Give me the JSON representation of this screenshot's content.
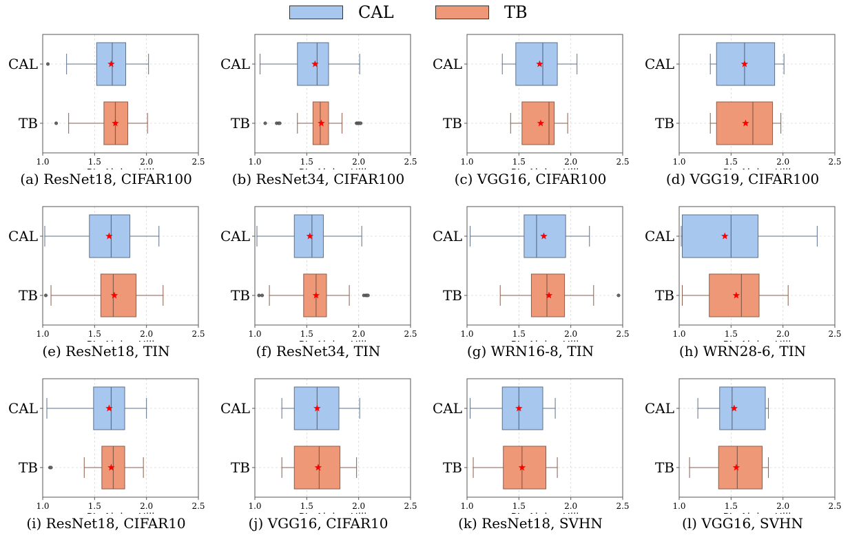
{
  "legend": {
    "entries": [
      {
        "name": "CAL",
        "color": "#a7c7ee"
      },
      {
        "name": "TB",
        "color": "#ee9877"
      }
    ]
  },
  "star_color": "#ff0000",
  "chart_data": [
    {
      "type": "box",
      "caption": "(a) ResNet18, CIFAR100",
      "xlabel": "PL_Alpha_Hill",
      "xlim": [
        1.0,
        2.5
      ],
      "xticks": [
        "1.0",
        "1.5",
        "2.0",
        "2.5"
      ],
      "categories": [
        "CAL",
        "TB"
      ],
      "grid": true,
      "boxes": [
        {
          "name": "CAL",
          "whisker_low": 1.23,
          "q1": 1.52,
          "median": 1.67,
          "q3": 1.8,
          "whisker_high": 2.02,
          "mean": 1.66,
          "outliers": [
            1.05
          ]
        },
        {
          "name": "TB",
          "whisker_low": 1.25,
          "q1": 1.59,
          "median": 1.7,
          "q3": 1.82,
          "whisker_high": 2.01,
          "mean": 1.7,
          "outliers": [
            1.13
          ]
        }
      ]
    },
    {
      "type": "box",
      "caption": "(b) ResNet34, CIFAR100",
      "xlabel": "PL_Alpha_Hill",
      "xlim": [
        1.0,
        2.5
      ],
      "xticks": [
        "1.0",
        "1.5",
        "2.0",
        "2.5"
      ],
      "categories": [
        "CAL",
        "TB"
      ],
      "grid": true,
      "boxes": [
        {
          "name": "CAL",
          "whisker_low": 1.05,
          "q1": 1.41,
          "median": 1.6,
          "q3": 1.71,
          "whisker_high": 2.01,
          "mean": 1.58,
          "outliers": []
        },
        {
          "name": "TB",
          "whisker_low": 1.41,
          "q1": 1.56,
          "median": 1.63,
          "q3": 1.71,
          "whisker_high": 1.84,
          "mean": 1.64,
          "outliers": [
            1.1,
            1.21,
            1.23,
            1.24,
            1.98,
            1.99,
            2.0,
            2.01,
            2.02
          ]
        }
      ]
    },
    {
      "type": "box",
      "caption": "(c) VGG16, CIFAR100",
      "xlabel": "PL_Alpha_Hill",
      "xlim": [
        1.0,
        2.5
      ],
      "xticks": [
        "1.0",
        "1.5",
        "2.0",
        "2.5"
      ],
      "categories": [
        "CAL",
        "TB"
      ],
      "grid": true,
      "boxes": [
        {
          "name": "CAL",
          "whisker_low": 1.34,
          "q1": 1.47,
          "median": 1.73,
          "q3": 1.87,
          "whisker_high": 2.06,
          "mean": 1.7,
          "outliers": []
        },
        {
          "name": "TB",
          "whisker_low": 1.42,
          "q1": 1.53,
          "median": 1.79,
          "q3": 1.84,
          "whisker_high": 1.97,
          "mean": 1.71,
          "outliers": []
        }
      ]
    },
    {
      "type": "box",
      "caption": "(d) VGG19, CIFAR100",
      "xlabel": "PL_Alpha_Hill",
      "xlim": [
        1.0,
        2.5
      ],
      "xticks": [
        "1.0",
        "1.5",
        "2.0",
        "2.5"
      ],
      "categories": [
        "CAL",
        "TB"
      ],
      "grid": true,
      "boxes": [
        {
          "name": "CAL",
          "whisker_low": 1.3,
          "q1": 1.36,
          "median": 1.63,
          "q3": 1.92,
          "whisker_high": 2.01,
          "mean": 1.63,
          "outliers": []
        },
        {
          "name": "TB",
          "whisker_low": 1.3,
          "q1": 1.36,
          "median": 1.71,
          "q3": 1.9,
          "whisker_high": 1.98,
          "mean": 1.64,
          "outliers": []
        }
      ]
    },
    {
      "type": "box",
      "caption": "(e) ResNet18, TIN",
      "xlabel": "PL_Alpha_Hill",
      "xlim": [
        1.0,
        2.5
      ],
      "xticks": [
        "1.0",
        "1.5",
        "2.0",
        "2.5"
      ],
      "categories": [
        "CAL",
        "TB"
      ],
      "grid": true,
      "boxes": [
        {
          "name": "CAL",
          "whisker_low": 1.02,
          "q1": 1.45,
          "median": 1.66,
          "q3": 1.84,
          "whisker_high": 2.12,
          "mean": 1.64,
          "outliers": []
        },
        {
          "name": "TB",
          "whisker_low": 1.08,
          "q1": 1.56,
          "median": 1.68,
          "q3": 1.9,
          "whisker_high": 2.16,
          "mean": 1.69,
          "outliers": [
            1.03
          ]
        }
      ]
    },
    {
      "type": "box",
      "caption": "(f) ResNet34, TIN",
      "xlabel": "PL_Alpha_Hill",
      "xlim": [
        1.0,
        2.5
      ],
      "xticks": [
        "1.0",
        "1.5",
        "2.0",
        "2.5"
      ],
      "categories": [
        "CAL",
        "TB"
      ],
      "grid": true,
      "boxes": [
        {
          "name": "CAL",
          "whisker_low": 1.02,
          "q1": 1.38,
          "median": 1.55,
          "q3": 1.66,
          "whisker_high": 2.03,
          "mean": 1.53,
          "outliers": []
        },
        {
          "name": "TB",
          "whisker_low": 1.14,
          "q1": 1.47,
          "median": 1.59,
          "q3": 1.69,
          "whisker_high": 1.91,
          "mean": 1.59,
          "outliers": [
            1.04,
            1.07,
            2.05,
            2.07,
            2.08,
            2.09
          ]
        }
      ]
    },
    {
      "type": "box",
      "caption": "(g) WRN16-8, TIN",
      "xlabel": "PL_Alpha_Hill",
      "xlim": [
        1.0,
        2.5
      ],
      "xticks": [
        "1.0",
        "1.5",
        "2.0",
        "2.5"
      ],
      "categories": [
        "CAL",
        "TB"
      ],
      "grid": true,
      "boxes": [
        {
          "name": "CAL",
          "whisker_low": 1.03,
          "q1": 1.55,
          "median": 1.67,
          "q3": 1.95,
          "whisker_high": 2.18,
          "mean": 1.74,
          "outliers": []
        },
        {
          "name": "TB",
          "whisker_low": 1.32,
          "q1": 1.62,
          "median": 1.77,
          "q3": 1.94,
          "whisker_high": 2.22,
          "mean": 1.79,
          "outliers": [
            2.46
          ]
        }
      ]
    },
    {
      "type": "box",
      "caption": "(h) WRN28-6, TIN",
      "xlabel": "PL_Alpha_Hill",
      "xlim": [
        1.0,
        2.5
      ],
      "xticks": [
        "1.0",
        "1.5",
        "2.0",
        "2.5"
      ],
      "categories": [
        "CAL",
        "TB"
      ],
      "grid": true,
      "boxes": [
        {
          "name": "CAL",
          "whisker_low": 1.02,
          "q1": 1.03,
          "median": 1.5,
          "q3": 1.76,
          "whisker_high": 2.33,
          "mean": 1.44,
          "outliers": []
        },
        {
          "name": "TB",
          "whisker_low": 1.03,
          "q1": 1.29,
          "median": 1.6,
          "q3": 1.77,
          "whisker_high": 2.05,
          "mean": 1.55,
          "outliers": []
        }
      ]
    },
    {
      "type": "box",
      "caption": "(i) ResNet18, CIFAR10",
      "xlabel": "PL_Alpha_Hill",
      "xlim": [
        1.0,
        2.5
      ],
      "xticks": [
        "1.0",
        "1.5",
        "2.0",
        "2.5"
      ],
      "categories": [
        "CAL",
        "TB"
      ],
      "grid": true,
      "boxes": [
        {
          "name": "CAL",
          "whisker_low": 1.04,
          "q1": 1.49,
          "median": 1.66,
          "q3": 1.79,
          "whisker_high": 2.0,
          "mean": 1.64,
          "outliers": []
        },
        {
          "name": "TB",
          "whisker_low": 1.4,
          "q1": 1.57,
          "median": 1.68,
          "q3": 1.79,
          "whisker_high": 1.97,
          "mean": 1.66,
          "outliers": [
            1.07,
            1.08
          ]
        }
      ]
    },
    {
      "type": "box",
      "caption": "(j) VGG16, CIFAR10",
      "xlabel": "PL_Alpha_Hill",
      "xlim": [
        1.0,
        2.5
      ],
      "xticks": [
        "1.0",
        "1.5",
        "2.0",
        "2.5"
      ],
      "categories": [
        "CAL",
        "TB"
      ],
      "grid": true,
      "boxes": [
        {
          "name": "CAL",
          "whisker_low": 1.26,
          "q1": 1.38,
          "median": 1.6,
          "q3": 1.81,
          "whisker_high": 2.01,
          "mean": 1.6,
          "outliers": []
        },
        {
          "name": "TB",
          "whisker_low": 1.26,
          "q1": 1.38,
          "median": 1.62,
          "q3": 1.82,
          "whisker_high": 1.98,
          "mean": 1.61,
          "outliers": []
        }
      ]
    },
    {
      "type": "box",
      "caption": "(k) ResNet18, SVHN",
      "xlabel": "PL_Alpha_Hill",
      "xlim": [
        1.0,
        2.5
      ],
      "xticks": [
        "1.0",
        "1.5",
        "2.0",
        "2.5"
      ],
      "categories": [
        "CAL",
        "TB"
      ],
      "grid": true,
      "boxes": [
        {
          "name": "CAL",
          "whisker_low": 1.03,
          "q1": 1.34,
          "median": 1.5,
          "q3": 1.73,
          "whisker_high": 1.85,
          "mean": 1.5,
          "outliers": []
        },
        {
          "name": "TB",
          "whisker_low": 1.06,
          "q1": 1.35,
          "median": 1.53,
          "q3": 1.76,
          "whisker_high": 1.87,
          "mean": 1.53,
          "outliers": []
        }
      ]
    },
    {
      "type": "box",
      "caption": "(l) VGG16, SVHN",
      "xlabel": "PL_Alpha_Hill",
      "xlim": [
        1.0,
        2.5
      ],
      "xticks": [
        "1.0",
        "1.5",
        "2.0",
        "2.5"
      ],
      "categories": [
        "CAL",
        "TB"
      ],
      "grid": true,
      "boxes": [
        {
          "name": "CAL",
          "whisker_low": 1.18,
          "q1": 1.39,
          "median": 1.51,
          "q3": 1.83,
          "whisker_high": 1.86,
          "mean": 1.53,
          "outliers": []
        },
        {
          "name": "TB",
          "whisker_low": 1.1,
          "q1": 1.38,
          "median": 1.56,
          "q3": 1.8,
          "whisker_high": 1.86,
          "mean": 1.55,
          "outliers": []
        }
      ]
    }
  ]
}
